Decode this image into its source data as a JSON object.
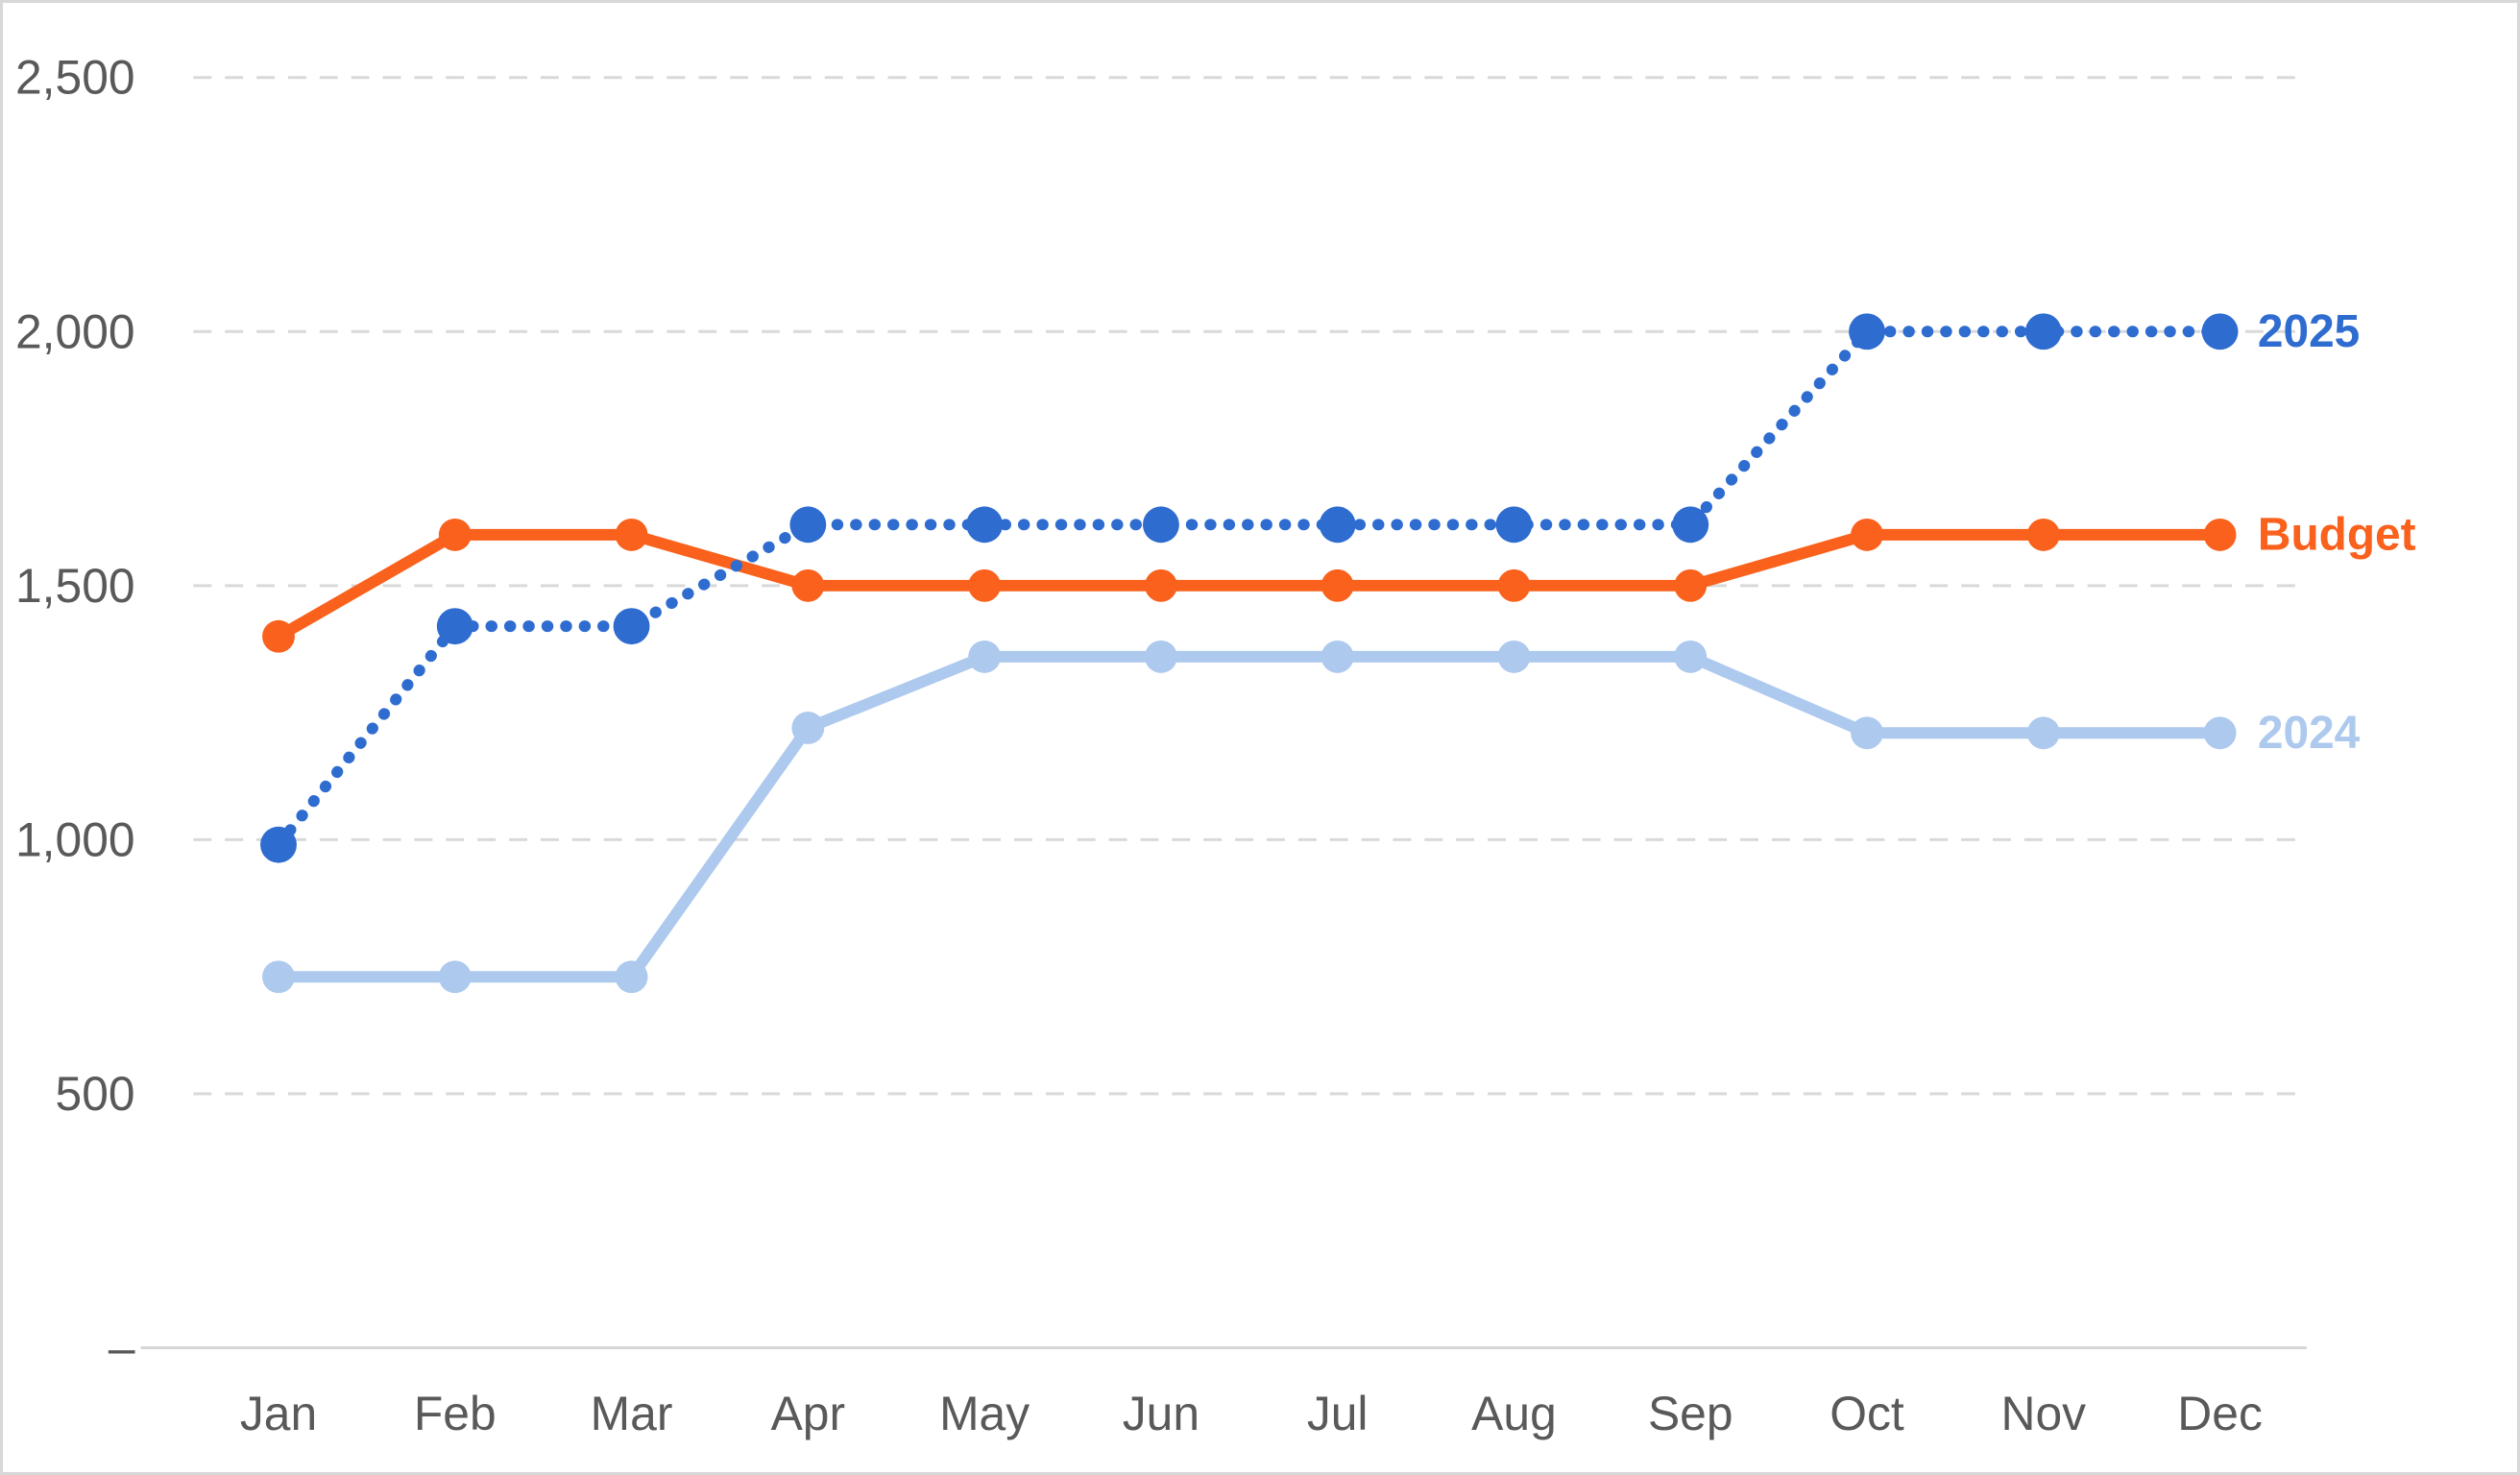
{
  "colors": {
    "background": "#ffffff",
    "frame_border": "#d8d8d8",
    "gridline": "#d9d9d9",
    "axis_line": "#d6d6d6",
    "axis_text": "#595959",
    "series_2025": "#2e6cd0",
    "series_budget": "#f9611c",
    "series_2024": "#adc9ee"
  },
  "chart_data": {
    "type": "line",
    "title": "",
    "xlabel": "",
    "ylabel": "",
    "categories": [
      "Jan",
      "Feb",
      "Mar",
      "Apr",
      "May",
      "Jun",
      "Jul",
      "Aug",
      "Sep",
      "Oct",
      "Nov",
      "Dec"
    ],
    "series": [
      {
        "name": "2024",
        "color": "#adc9ee",
        "line_style": "solid",
        "label_position": "end-of-line",
        "values": [
          730,
          730,
          730,
          1220,
          1360,
          1360,
          1360,
          1360,
          1360,
          1210,
          1210,
          1210
        ]
      },
      {
        "name": "Budget",
        "color": "#f9611c",
        "line_style": "solid",
        "label_position": "end-of-line",
        "values": [
          1400,
          1600,
          1600,
          1500,
          1500,
          1500,
          1500,
          1500,
          1500,
          1600,
          1600,
          1600
        ]
      },
      {
        "name": "2025",
        "color": "#2e6cd0",
        "line_style": "dotted",
        "label_position": "end-of-line",
        "values": [
          990,
          1420,
          1420,
          1620,
          1620,
          1620,
          1620,
          1620,
          1620,
          2000,
          2000,
          2000
        ]
      }
    ],
    "y_axis": {
      "min": 0,
      "max": 2500,
      "tick_values": [
        2500,
        2000,
        1500,
        1000,
        500,
        0
      ],
      "tick_labels": [
        "2,500",
        "2,000",
        "1,500",
        "1,000",
        "500",
        "–"
      ]
    },
    "grid": "horizontal dashed gridlines, solid baseline at zero",
    "legend_position": "labels at right end of each line"
  }
}
